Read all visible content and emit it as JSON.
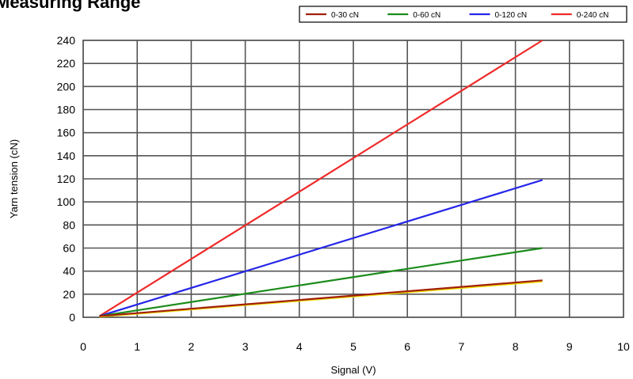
{
  "chart_data": {
    "type": "line",
    "title": "Measuring Range",
    "xlabel": "Signal (V)",
    "ylabel": "Yarn tension (cN)",
    "xlim": [
      0,
      10
    ],
    "ylim": [
      0,
      240
    ],
    "xticks": [
      "0",
      "1",
      "2",
      "3",
      "4",
      "5",
      "6",
      "7",
      "8",
      "9",
      "10"
    ],
    "yticks": [
      "0",
      "20",
      "40",
      "60",
      "80",
      "100",
      "120",
      "140",
      "160",
      "180",
      "200",
      "220",
      "240"
    ],
    "grid": true,
    "legend_position": "top-right",
    "series": [
      {
        "name": "0-30 cN",
        "color": "#a0200a",
        "x": [
          0.3,
          8.5
        ],
        "y": [
          1,
          32
        ]
      },
      {
        "name": "0-60 cN",
        "color": "#1a8c1a",
        "x": [
          0.3,
          8.5
        ],
        "y": [
          1,
          60
        ]
      },
      {
        "name": "0-120 cN",
        "color": "#2525e8",
        "x": [
          0.3,
          8.5
        ],
        "y": [
          1,
          119
        ]
      },
      {
        "name": "0-240 cN",
        "color": "#ee2a2a",
        "x": [
          0.3,
          8.5
        ],
        "y": [
          1,
          240
        ]
      }
    ],
    "extra_lines": [
      {
        "color": "#f0e000",
        "x": [
          0.3,
          8.5
        ],
        "y": [
          0.5,
          31
        ]
      }
    ]
  }
}
